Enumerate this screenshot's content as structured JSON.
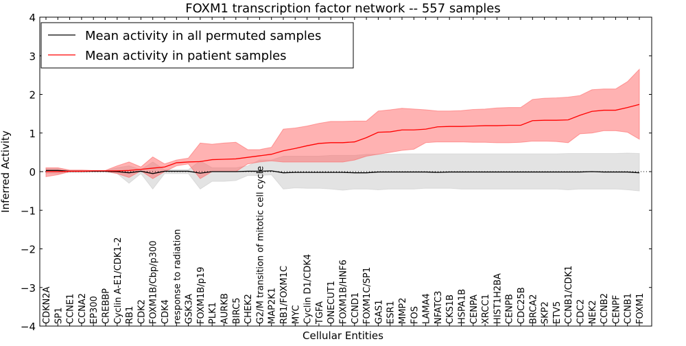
{
  "chart_data": {
    "type": "line",
    "title": "FOXM1 transcription factor network -- 557 samples",
    "xlabel": "Cellular Entities",
    "ylabel": "Inferred Activity",
    "ylim": [
      -4,
      4
    ],
    "yticks": [
      -4,
      -3,
      -2,
      -1,
      0,
      1,
      2,
      3,
      4
    ],
    "ytick_labels": [
      "−4",
      "−3",
      "−2",
      "−1",
      "0",
      "1",
      "2",
      "3",
      "4"
    ],
    "grid": false,
    "legend_position": "top-left",
    "categories": [
      "CDKN2A",
      "SP1",
      "CCNE1",
      "CCNA2",
      "EP300",
      "CREBBP",
      "Cyclin A-E1/CDK1-2",
      "RB1",
      "CDK2",
      "FOXM1B/Cbp/p300",
      "CDK4",
      "response to radiation",
      "GSK3A",
      "FOXM1B/p19",
      "PLK1",
      "AURKB",
      "BIRC5",
      "CHEK2",
      "G2/M transition of mitotic cell cycle",
      "MAP2K1",
      "RB1/FOXM1C",
      "MYC",
      "Cyclin D1/CDK4",
      "TGFA",
      "ONECUT1",
      "FOXM1B/HNF6",
      "CCND1",
      "FOXM1C/SP1",
      "GAS1",
      "ESR1",
      "MMP2",
      "FOS",
      "LAMA4",
      "NFATC3",
      "CKS1B",
      "HSPA1B",
      "CENPA",
      "XRCC1",
      "HIST1H2BA",
      "CENPB",
      "CDC25B",
      "BRCA2",
      "SKP2",
      "ETV5",
      "CCNB1/CDK1",
      "CDC2",
      "NEK2",
      "CCNB2",
      "CENPF",
      "CCNB1",
      "FOXM1"
    ],
    "series": [
      {
        "name": "Mean activity in all permuted samples",
        "color": "#000000",
        "band_color": "#cccccc",
        "values": [
          0.03,
          0.03,
          0.01,
          0.01,
          0.01,
          0.01,
          0.0,
          -0.03,
          0.01,
          -0.05,
          0.01,
          0.01,
          0.01,
          -0.04,
          0.0,
          0.0,
          0.0,
          0.01,
          0.01,
          0.02,
          -0.03,
          -0.02,
          -0.02,
          -0.02,
          -0.02,
          -0.02,
          -0.03,
          -0.03,
          -0.01,
          -0.01,
          -0.01,
          -0.01,
          -0.01,
          -0.02,
          -0.01,
          -0.01,
          -0.01,
          -0.01,
          -0.01,
          -0.01,
          -0.01,
          -0.01,
          -0.01,
          -0.01,
          -0.01,
          -0.01,
          0.0,
          -0.01,
          -0.01,
          -0.01,
          -0.03
        ],
        "upper": [
          0.08,
          0.08,
          0.03,
          0.03,
          0.02,
          0.02,
          0.1,
          0.15,
          0.05,
          0.25,
          0.05,
          0.05,
          0.05,
          0.28,
          0.1,
          0.1,
          0.1,
          0.15,
          0.3,
          0.3,
          0.4,
          0.4,
          0.4,
          0.4,
          0.42,
          0.42,
          0.42,
          0.45,
          0.45,
          0.45,
          0.46,
          0.46,
          0.46,
          0.46,
          0.46,
          0.46,
          0.46,
          0.46,
          0.46,
          0.46,
          0.46,
          0.46,
          0.46,
          0.46,
          0.47,
          0.47,
          0.47,
          0.47,
          0.47,
          0.48,
          0.47
        ],
        "lower": [
          -0.05,
          -0.05,
          -0.02,
          -0.02,
          -0.01,
          -0.01,
          -0.05,
          -0.3,
          -0.05,
          -0.45,
          -0.05,
          -0.05,
          -0.05,
          -0.45,
          -0.25,
          -0.25,
          -0.23,
          -0.1,
          -0.1,
          -0.08,
          -0.45,
          -0.42,
          -0.43,
          -0.43,
          -0.45,
          -0.48,
          -0.45,
          -0.45,
          -0.47,
          -0.45,
          -0.45,
          -0.45,
          -0.43,
          -0.43,
          -0.43,
          -0.45,
          -0.45,
          -0.45,
          -0.45,
          -0.45,
          -0.45,
          -0.45,
          -0.45,
          -0.45,
          -0.47,
          -0.45,
          -0.45,
          -0.45,
          -0.45,
          -0.47,
          -0.5
        ]
      },
      {
        "name": "Mean activity in patient samples",
        "color": "#ff0000",
        "band_color": "#ff6666",
        "values": [
          0.0,
          0.0,
          0.01,
          0.01,
          0.02,
          0.02,
          0.02,
          0.03,
          0.06,
          0.09,
          0.12,
          0.23,
          0.25,
          0.26,
          0.31,
          0.32,
          0.33,
          0.37,
          0.41,
          0.45,
          0.54,
          0.6,
          0.67,
          0.73,
          0.75,
          0.75,
          0.77,
          0.88,
          1.02,
          1.03,
          1.08,
          1.08,
          1.1,
          1.16,
          1.17,
          1.17,
          1.18,
          1.19,
          1.19,
          1.2,
          1.2,
          1.32,
          1.33,
          1.33,
          1.34,
          1.46,
          1.56,
          1.59,
          1.59,
          1.66,
          1.74
        ],
        "upper": [
          0.1,
          0.1,
          0.04,
          0.04,
          0.03,
          0.03,
          0.15,
          0.25,
          0.12,
          0.38,
          0.2,
          0.3,
          0.35,
          0.74,
          0.71,
          0.74,
          0.76,
          0.57,
          0.57,
          0.63,
          1.1,
          1.13,
          1.18,
          1.25,
          1.3,
          1.3,
          1.31,
          1.31,
          1.57,
          1.6,
          1.64,
          1.62,
          1.6,
          1.57,
          1.57,
          1.58,
          1.61,
          1.62,
          1.65,
          1.66,
          1.66,
          1.87,
          1.9,
          1.91,
          1.93,
          1.97,
          2.12,
          2.14,
          2.14,
          2.33,
          2.65
        ],
        "lower": [
          -0.13,
          -0.08,
          0.0,
          0.0,
          0.01,
          0.01,
          -0.05,
          -0.15,
          0.02,
          -0.18,
          0.0,
          0.15,
          0.2,
          -0.18,
          0.0,
          0.0,
          0.0,
          0.2,
          0.25,
          0.28,
          0.25,
          0.25,
          0.25,
          0.25,
          0.25,
          0.25,
          0.3,
          0.4,
          0.45,
          0.5,
          0.55,
          0.58,
          0.75,
          0.77,
          0.77,
          0.77,
          0.76,
          0.76,
          0.75,
          0.75,
          0.76,
          0.79,
          0.79,
          0.78,
          0.75,
          0.98,
          1.0,
          1.06,
          1.06,
          1.02,
          0.84
        ]
      }
    ]
  }
}
